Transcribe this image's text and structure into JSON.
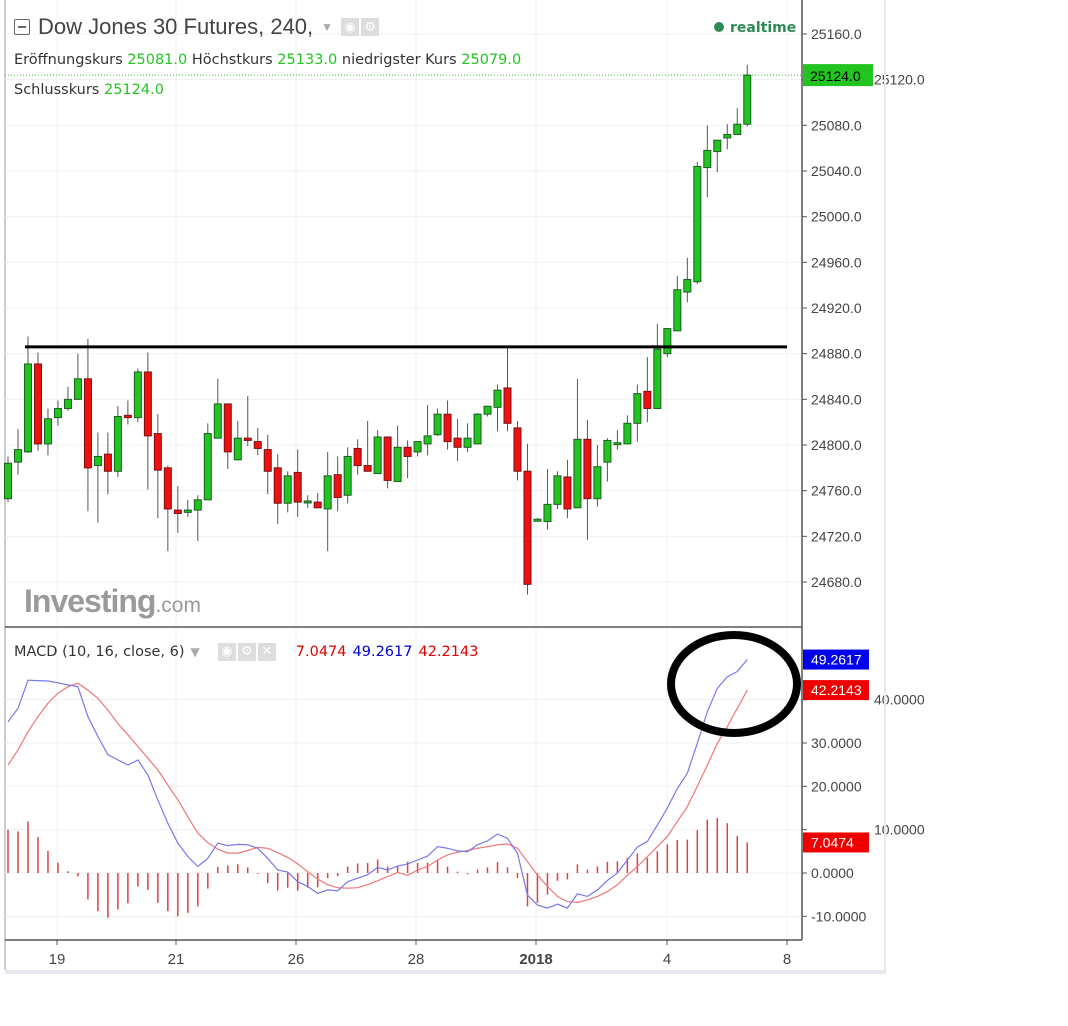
{
  "header": {
    "title": "Dow Jones 30 Futures, 240,",
    "status": "realtime",
    "open_label": "Eröffnungskurs",
    "open": "25081.0",
    "high_label": "Höchstkurs",
    "high": "25133.0",
    "low_label": "niedrigster Kurs",
    "low": "25079.0",
    "close_label": "Schlusskurs",
    "close": "25124.0"
  },
  "watermark": {
    "brand": "Investing",
    "suffix": ".com"
  },
  "macd_header": {
    "label": "MACD (10, 16, close, 6)",
    "hist": "7.0474",
    "macd": "49.2617",
    "signal": "42.2143"
  },
  "colors": {
    "up": "#22c520",
    "down": "#ee1111",
    "macd": "#7777ee",
    "signal": "#ee7777",
    "hist": "#e04040",
    "resistance": "#000000",
    "last_price": "#22c520"
  },
  "chart_data": [
    {
      "type": "candlestick",
      "title": "Dow Jones 30 Futures, 240",
      "ylim": [
        24660,
        25180
      ],
      "y_ticks": [
        "25160.0",
        "25120.0",
        "25080.0",
        "25040.0",
        "25000.0",
        "24960.0",
        "24920.0",
        "24880.0",
        "24840.0",
        "24800.0",
        "24760.0",
        "24720.0",
        "24680.0"
      ],
      "last_price_label": "25124.0",
      "resistance_level": 24886,
      "ohlc": [
        [
          24753,
          24790,
          24750,
          24784
        ],
        [
          24785,
          24814,
          24774,
          24796
        ],
        [
          24794,
          24895,
          24793,
          24871
        ],
        [
          24871,
          24881,
          24795,
          24801
        ],
        [
          24801,
          24832,
          24791,
          24823
        ],
        [
          24824,
          24839,
          24817,
          24832
        ],
        [
          24832,
          24851,
          24830,
          24840
        ],
        [
          24840,
          24880,
          24840,
          24858
        ],
        [
          24858,
          24893,
          24742,
          24780
        ],
        [
          24782,
          24811,
          24732,
          24790
        ],
        [
          24792,
          24811,
          24757,
          24777
        ],
        [
          24777,
          24834,
          24772,
          24825
        ],
        [
          24826,
          24839,
          24818,
          24824
        ],
        [
          24824,
          24867,
          24820,
          24864
        ],
        [
          24864,
          24881,
          24761,
          24808
        ],
        [
          24810,
          24827,
          24736,
          24778
        ],
        [
          24780,
          24782,
          24707,
          24744
        ],
        [
          24743,
          24764,
          24723,
          24740
        ],
        [
          24741,
          24752,
          24737,
          24743
        ],
        [
          24743,
          24756,
          24716,
          24752
        ],
        [
          24752,
          24819,
          24752,
          24810
        ],
        [
          24806,
          24858,
          24806,
          24836
        ],
        [
          24836,
          24836,
          24779,
          24794
        ],
        [
          24787,
          24821,
          24787,
          24806
        ],
        [
          24806,
          24843,
          24799,
          24804
        ],
        [
          24803,
          24815,
          24791,
          24797
        ],
        [
          24796,
          24809,
          24757,
          24777
        ],
        [
          24780,
          24792,
          24731,
          24749
        ],
        [
          24749,
          24777,
          24741,
          24773
        ],
        [
          24776,
          24796,
          24737,
          24750
        ],
        [
          24750,
          24756,
          24745,
          24751
        ],
        [
          24750,
          24758,
          24745,
          24745
        ],
        [
          24744,
          24794,
          24707,
          24773
        ],
        [
          24774,
          24790,
          24742,
          24754
        ],
        [
          24756,
          24798,
          24749,
          24790
        ],
        [
          24797,
          24805,
          24774,
          24782
        ],
        [
          24782,
          24821,
          24777,
          24777
        ],
        [
          24775,
          24813,
          24775,
          24807
        ],
        [
          24807,
          24807,
          24762,
          24769
        ],
        [
          24768,
          24817,
          24768,
          24798
        ],
        [
          24798,
          24804,
          24771,
          24790
        ],
        [
          24794,
          24803,
          24790,
          24803
        ],
        [
          24801,
          24835,
          24791,
          24808
        ],
        [
          24809,
          24832,
          24808,
          24827
        ],
        [
          24827,
          24839,
          24796,
          24803
        ],
        [
          24806,
          24823,
          24786,
          24798
        ],
        [
          24798,
          24819,
          24794,
          24806
        ],
        [
          24801,
          24828,
          24801,
          24827
        ],
        [
          24827,
          24834,
          24825,
          24834
        ],
        [
          24833,
          24853,
          24812,
          24848
        ],
        [
          24850,
          24887,
          24812,
          24819
        ],
        [
          24815,
          24821,
          24769,
          24777
        ],
        [
          24777,
          24801,
          24669,
          24678
        ],
        [
          24735,
          24736,
          24734,
          24735
        ],
        [
          24733,
          24779,
          24726,
          24748
        ],
        [
          24748,
          24777,
          24744,
          24773
        ],
        [
          24772,
          24787,
          24736,
          24744
        ],
        [
          24745,
          24858,
          24745,
          24805
        ],
        [
          24805,
          24822,
          24717,
          24753
        ],
        [
          24753,
          24800,
          24746,
          24781
        ],
        [
          24785,
          24806,
          24768,
          24804
        ],
        [
          24801,
          24813,
          24796,
          24802
        ],
        [
          24801,
          24826,
          24801,
          24819
        ],
        [
          24819,
          24853,
          24803,
          24845
        ],
        [
          24847,
          24877,
          24820,
          24832
        ],
        [
          24832,
          24906,
          24832,
          24884
        ],
        [
          24880,
          24902,
          24877,
          24902
        ],
        [
          24900,
          24948,
          24900,
          24936
        ],
        [
          24934,
          24964,
          24925,
          24945
        ],
        [
          24943,
          25048,
          24941,
          25044
        ],
        [
          25043,
          25080,
          25017,
          25058
        ],
        [
          25057,
          25067,
          25039,
          25067
        ],
        [
          25069,
          25081,
          25059,
          25072
        ],
        [
          25072,
          25095,
          25072,
          25081
        ],
        [
          25081,
          25133,
          25079,
          25124
        ]
      ]
    },
    {
      "type": "line+bar",
      "title": "MACD (10, 16, close, 6)",
      "ylim": [
        -15,
        52
      ],
      "y_ticks": [
        "40.0000",
        "30.0000",
        "20.0000",
        "10.0000",
        "0.0000",
        "-10.0000"
      ],
      "x_tick_labels": [
        "19",
        "21",
        "26",
        "28",
        "2018",
        "4",
        "8"
      ],
      "series": [
        {
          "name": "MACD",
          "values": [
            34.9,
            38.0,
            44.5,
            44.4,
            44.3,
            43.9,
            43.4,
            43.0,
            36.1,
            31.5,
            27.3,
            26.1,
            24.9,
            26.1,
            22.6,
            16.9,
            11.5,
            6.9,
            3.8,
            1.5,
            3.4,
            6.9,
            6.3,
            6.6,
            6.5,
            5.7,
            3.4,
            0.7,
            0.2,
            -2.0,
            -3.1,
            -4.7,
            -3.9,
            -4.1,
            -2.0,
            -1.2,
            -0.4,
            1.3,
            0.7,
            1.6,
            2.1,
            3.0,
            3.9,
            6.1,
            5.7,
            5.1,
            4.9,
            6.5,
            7.4,
            9.0,
            8.0,
            4.5,
            -5.1,
            -7.4,
            -8.1,
            -7.2,
            -8.1,
            -4.8,
            -5.4,
            -3.9,
            -1.7,
            0.0,
            3.0,
            6.0,
            7.3,
            11.1,
            15.0,
            19.5,
            23.0,
            29.9,
            37.2,
            42.6,
            45.3,
            46.5,
            49.2617
          ],
          "last_label": "49.2617"
        },
        {
          "name": "Signal",
          "values": [
            24.9,
            28.4,
            32.6,
            36.1,
            39.2,
            41.5,
            43.0,
            43.8,
            42.2,
            40.3,
            37.6,
            34.5,
            31.9,
            29.2,
            26.5,
            23.8,
            20.3,
            16.9,
            13.0,
            9.2,
            7.0,
            5.5,
            4.6,
            4.6,
            5.2,
            5.9,
            5.7,
            4.7,
            3.6,
            2.1,
            0.3,
            -1.4,
            -2.7,
            -3.4,
            -3.5,
            -3.4,
            -2.7,
            -1.8,
            -0.8,
            0.1,
            -0.5,
            0.7,
            1.5,
            3.0,
            4.2,
            4.8,
            5.2,
            5.7,
            6.1,
            6.5,
            6.7,
            5.7,
            2.6,
            -0.5,
            -3.1,
            -5.4,
            -6.6,
            -6.8,
            -6.2,
            -5.4,
            -4.3,
            -2.7,
            -0.5,
            1.5,
            3.8,
            6.1,
            8.4,
            11.9,
            15.3,
            20.0,
            24.9,
            29.9,
            33.8,
            38.0,
            42.2143
          ],
          "last_label": "42.2143"
        },
        {
          "name": "Histogram",
          "values": [
            10.0,
            9.6,
            11.9,
            8.3,
            5.1,
            2.4,
            0.4,
            -0.8,
            -6.1,
            -8.8,
            -10.3,
            -8.4,
            -7.0,
            -3.1,
            -3.9,
            -6.9,
            -8.8,
            -10.0,
            -9.2,
            -7.7,
            -3.6,
            1.4,
            1.7,
            2.0,
            1.3,
            -0.2,
            -2.3,
            -4.0,
            -3.4,
            -4.1,
            -3.4,
            -3.3,
            -1.2,
            -0.7,
            1.5,
            2.2,
            2.3,
            3.1,
            1.5,
            1.5,
            2.6,
            2.3,
            2.4,
            3.1,
            1.5,
            0.3,
            -0.3,
            0.8,
            1.3,
            2.5,
            1.3,
            -1.2,
            -7.7,
            -6.9,
            -5.0,
            -1.8,
            -1.5,
            2.0,
            0.8,
            1.5,
            2.6,
            2.7,
            3.5,
            4.5,
            3.5,
            5.0,
            6.6,
            7.6,
            7.7,
            9.9,
            12.3,
            12.7,
            11.5,
            8.5,
            7.0474
          ],
          "last_label": "7.0474"
        }
      ]
    }
  ]
}
